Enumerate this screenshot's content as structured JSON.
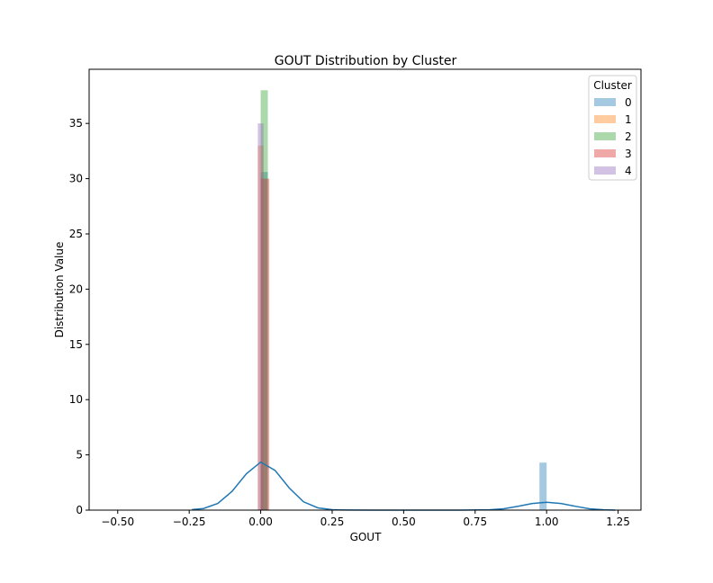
{
  "chart_data": {
    "type": "bar",
    "title": "GOUT Distribution by Cluster",
    "xlabel": "GOUT",
    "ylabel": "Distribution Value",
    "xlim": [
      -0.6,
      1.33
    ],
    "ylim": [
      0,
      39.9
    ],
    "xticks": [
      -0.5,
      -0.25,
      0.0,
      0.25,
      0.5,
      0.75,
      1.0,
      1.25
    ],
    "xtick_labels": [
      "−0.50",
      "−0.25",
      "0.00",
      "0.25",
      "0.50",
      "0.75",
      "1.00",
      "1.25"
    ],
    "yticks": [
      0,
      5,
      10,
      15,
      20,
      25,
      30,
      35
    ],
    "ytick_labels": [
      "0",
      "5",
      "10",
      "15",
      "20",
      "25",
      "30",
      "35"
    ],
    "grid": false,
    "legend": {
      "title": "Cluster",
      "placement": "top-right"
    },
    "series": [
      {
        "name": "0",
        "color": "#1f77b4",
        "bars": [
          {
            "x0": 0.0,
            "x1": 0.025,
            "height": 30.6
          },
          {
            "x0": 0.975,
            "x1": 1.0,
            "height": 4.3
          }
        ]
      },
      {
        "name": "1",
        "color": "#ff7f0e",
        "bars": [
          {
            "x0": -0.01,
            "x1": 0.01,
            "height": 33.0
          }
        ]
      },
      {
        "name": "2",
        "color": "#2ca02c",
        "bars": [
          {
            "x0": 0.0,
            "x1": 0.025,
            "height": 38.0
          }
        ]
      },
      {
        "name": "3",
        "color": "#d62728",
        "bars": [
          {
            "x0": 0.0,
            "x1": 0.03,
            "height": 30.0
          }
        ]
      },
      {
        "name": "4",
        "color": "#9467bd",
        "bars": [
          {
            "x0": -0.01,
            "x1": 0.01,
            "height": 35.0
          }
        ]
      }
    ],
    "kde_curve": {
      "series": "0",
      "color": "#1f77b4",
      "x": [
        -0.24,
        -0.2,
        -0.15,
        -0.1,
        -0.05,
        0.0,
        0.05,
        0.1,
        0.15,
        0.2,
        0.25,
        0.3,
        0.4,
        0.5,
        0.6,
        0.7,
        0.8,
        0.85,
        0.9,
        0.95,
        1.0,
        1.05,
        1.1,
        1.15,
        1.2,
        1.24
      ],
      "y": [
        0.05,
        0.15,
        0.6,
        1.7,
        3.3,
        4.35,
        3.6,
        2.0,
        0.75,
        0.2,
        0.04,
        0.01,
        0.0,
        0.0,
        0.0,
        0.0,
        0.03,
        0.12,
        0.35,
        0.6,
        0.72,
        0.6,
        0.35,
        0.12,
        0.03,
        0.0
      ]
    }
  }
}
